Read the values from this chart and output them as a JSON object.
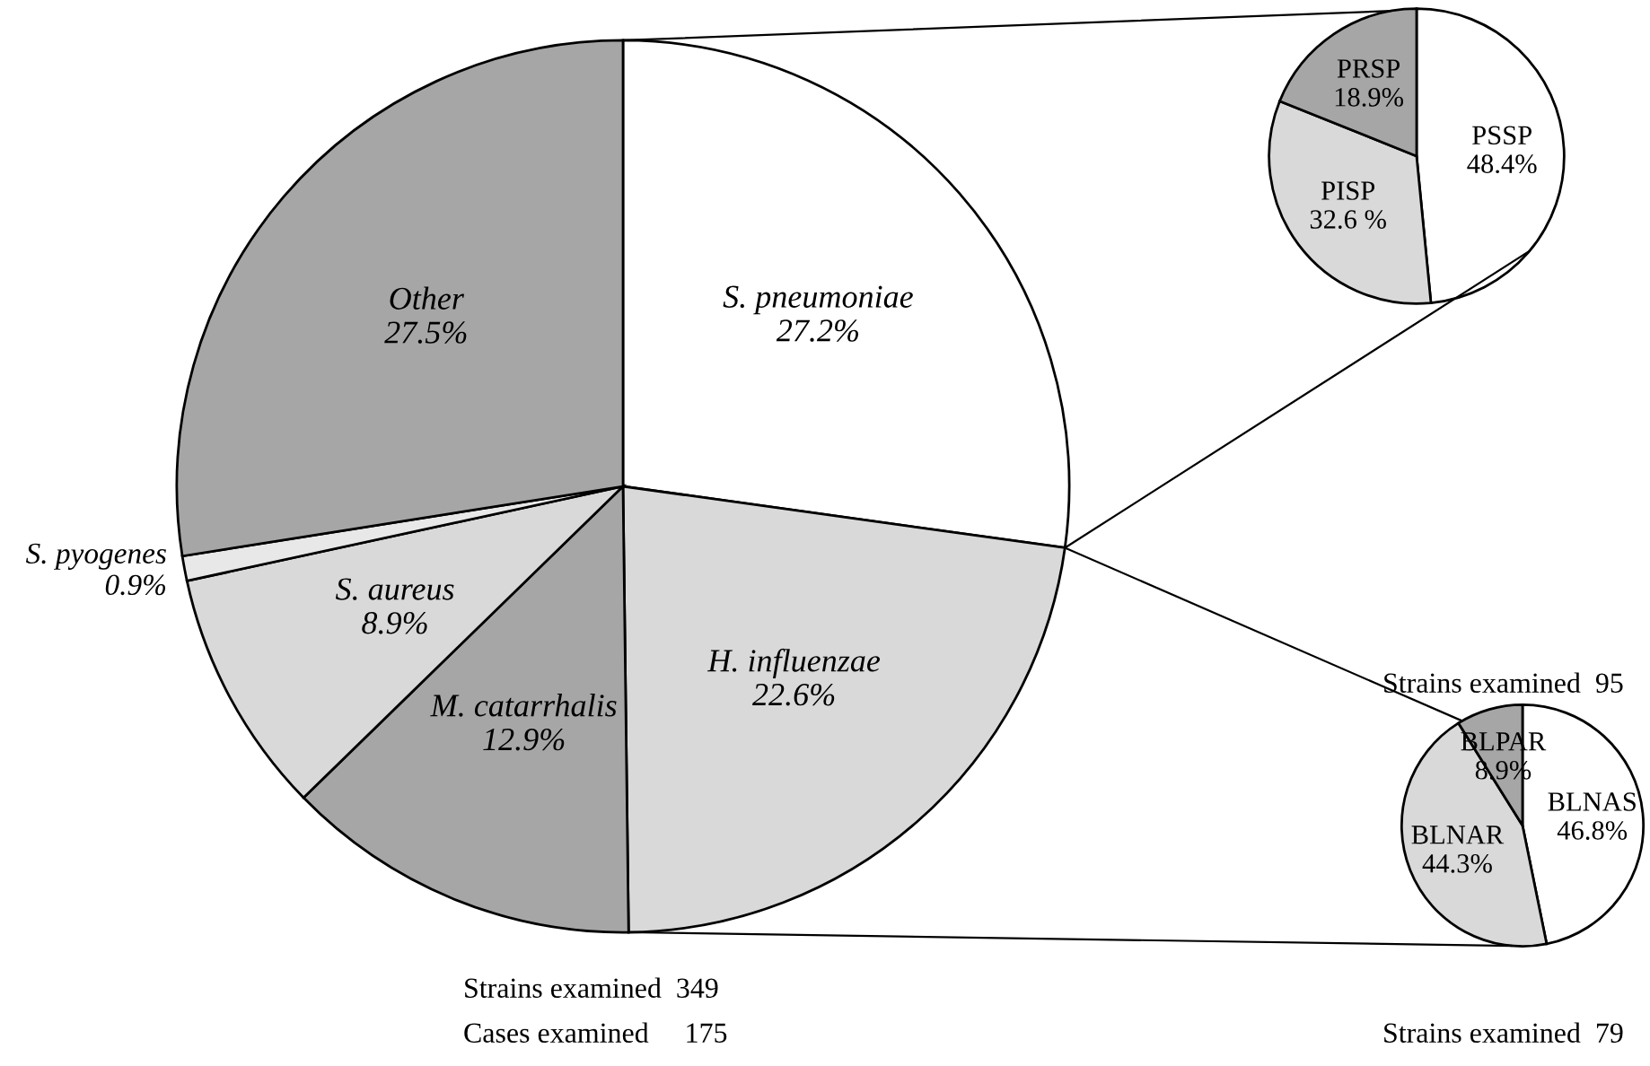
{
  "chart_data": [
    {
      "type": "pie",
      "categories": [
        "S. pneumoniae",
        "H. influenzae",
        "M. catarrhalis",
        "S. aureus",
        "S. pyogenes",
        "Other"
      ],
      "values": [
        27.2,
        22.6,
        12.9,
        8.9,
        0.9,
        27.5
      ],
      "value_labels": [
        "27.2%",
        "22.6%",
        "12.9%",
        "8.9%",
        "0.9%",
        "27.5%"
      ],
      "colors": [
        "#ffffff",
        "#d9d9d9",
        "#a6a6a6",
        "#d9d9d9",
        "#e8e8e8",
        "#a6a6a6"
      ],
      "annotations": [
        "Strains examined  349",
        "Cases examined     175"
      ]
    },
    {
      "type": "pie",
      "categories": [
        "PSSP",
        "PISP",
        "PRSP"
      ],
      "values": [
        48.4,
        32.6,
        18.9
      ],
      "value_labels": [
        "48.4%",
        "32.6 %",
        "18.9%"
      ],
      "colors": [
        "#ffffff",
        "#d9d9d9",
        "#a6a6a6"
      ],
      "annotations": [
        "Strains examined  95"
      ]
    },
    {
      "type": "pie",
      "categories": [
        "BLNAS",
        "BLNAR",
        "BLPAR"
      ],
      "values": [
        46.8,
        44.3,
        8.9
      ],
      "value_labels": [
        "46.8%",
        "44.3%",
        "8.9%"
      ],
      "colors": [
        "#ffffff",
        "#d9d9d9",
        "#a6a6a6"
      ],
      "annotations": [
        "Strains examined  79"
      ]
    }
  ]
}
